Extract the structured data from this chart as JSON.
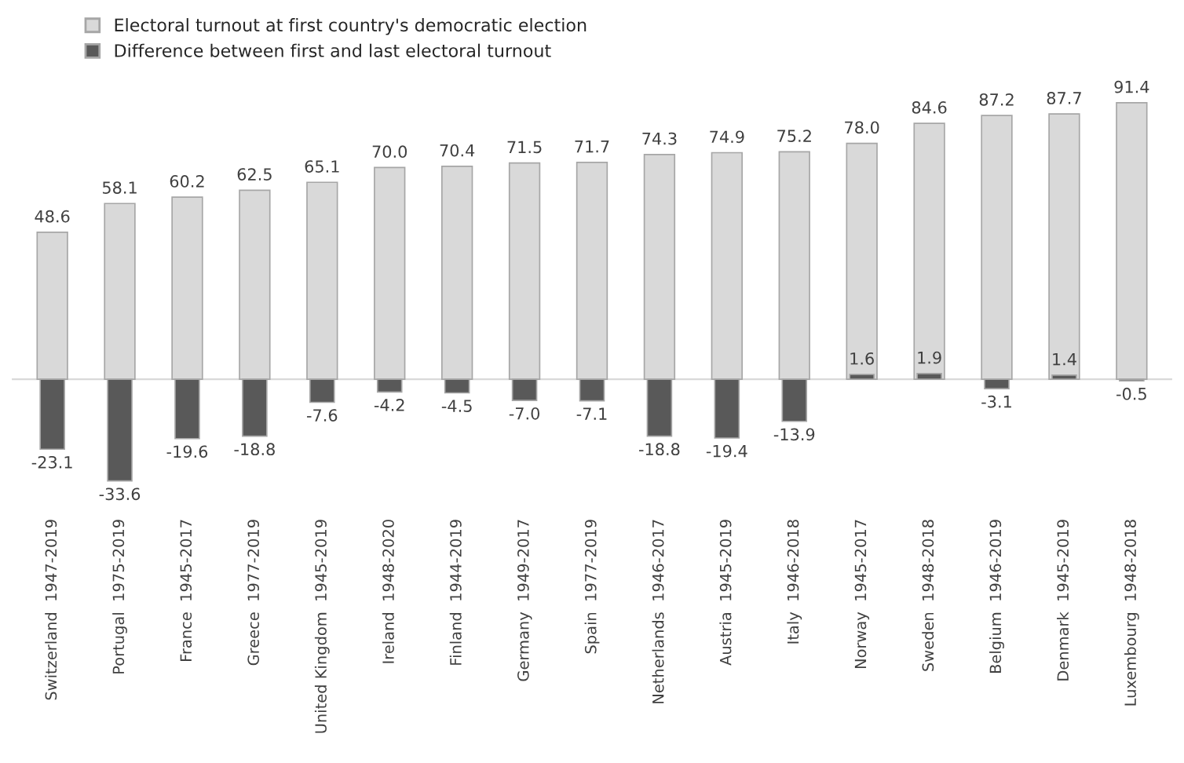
{
  "chart_data": {
    "type": "bar",
    "categories": [
      "Switzerland  1947-2019",
      "Portugal  1975-2019",
      "France  1945-2017",
      "Greece  1977-2019",
      "United Kingdom  1945-2019",
      "Ireland  1948-2020",
      "Finland  1944-2019",
      "Germany  1949-2017",
      "Spain  1977-2019",
      "Netherlands  1946-2017",
      "Austria  1945-2019",
      "Italy  1946-2018",
      "Norway  1945-2017",
      "Sweden  1948-2018",
      "Belgium  1946-2019",
      "Denmark  1945-2019",
      "Luxembourg  1948-2018"
    ],
    "series": [
      {
        "name": "Electoral turnout at first country's democratic election",
        "color": "#d9d9d9",
        "values": [
          48.6,
          58.1,
          60.2,
          62.5,
          65.1,
          70.0,
          70.4,
          71.5,
          71.7,
          74.3,
          74.9,
          75.2,
          78.0,
          84.6,
          87.2,
          87.7,
          91.4
        ],
        "value_labels": [
          "48.6",
          "58.1",
          "60.2",
          "62.5",
          "65.1",
          "70.0",
          "70.4",
          "71.5",
          "71.7",
          "74.3",
          "74.9",
          "75.2",
          "78.0",
          "84.6",
          "87.2",
          "87.7",
          "91.4"
        ]
      },
      {
        "name": "Difference between first and last electoral turnout",
        "color": "#595959",
        "values": [
          -23.1,
          -33.6,
          -19.6,
          -18.8,
          -7.6,
          -4.2,
          -4.5,
          -7.0,
          -7.1,
          -18.8,
          -19.4,
          -13.9,
          1.6,
          1.9,
          -3.1,
          1.4,
          -0.5
        ],
        "value_labels": [
          "-23.1",
          "-33.6",
          "-19.6",
          "-18.8",
          "-7.6",
          "-4.2",
          "-4.5",
          "-7.0",
          "-7.1",
          "-18.8",
          "-19.4",
          "-13.9",
          "1.6",
          "1.9",
          "-3.1",
          "1.4",
          "-0.5"
        ]
      }
    ],
    "legend": "top left"
  }
}
